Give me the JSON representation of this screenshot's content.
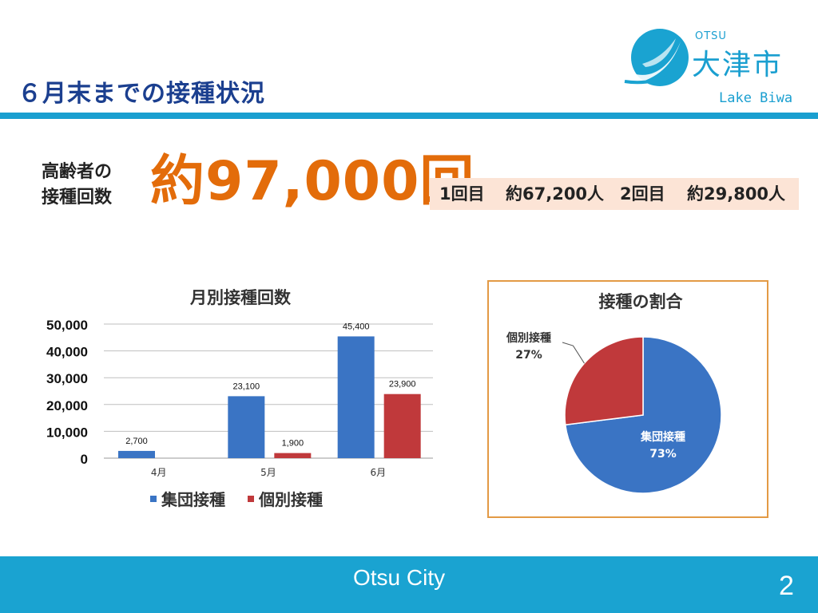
{
  "slide": {
    "title": "６月末までの接種状況",
    "logo": {
      "otsu": "OTSU",
      "name_jp": "大津市",
      "lake": "Lake Biwa"
    },
    "elder_label_line1": "高齢者の",
    "elder_label_line2": "接種回数",
    "total_count": "約97,000回",
    "breakdown": {
      "first_label": "1回目",
      "first_value": "約67,200人",
      "second_label": "2回目",
      "second_value": "約29,800人"
    },
    "footer": "Otsu City",
    "page_number": "2"
  },
  "chart_data": [
    {
      "type": "bar",
      "title": "月別接種回数",
      "categories": [
        "4月",
        "5月",
        "6月"
      ],
      "series": [
        {
          "name": "集団接種",
          "values": [
            2700,
            23100,
            45400
          ],
          "labels": [
            "2,700",
            "23,100",
            "45,400"
          ],
          "color": "#3a74c4"
        },
        {
          "name": "個別接種",
          "values": [
            null,
            1900,
            23900
          ],
          "labels": [
            "",
            "1,900",
            "23,900"
          ],
          "color": "#c0393b"
        }
      ],
      "yticks": [
        "0",
        "10,000",
        "20,000",
        "30,000",
        "40,000",
        "50,000"
      ],
      "ylim": [
        0,
        50000
      ],
      "grid": true,
      "legend": "bottom"
    },
    {
      "type": "pie",
      "title": "接種の割合",
      "slices": [
        {
          "name": "集団接種",
          "value": 73,
          "label": "73%",
          "color": "#3a74c4"
        },
        {
          "name": "個別接種",
          "value": 27,
          "label": "27%",
          "color": "#c0393b"
        }
      ]
    }
  ]
}
